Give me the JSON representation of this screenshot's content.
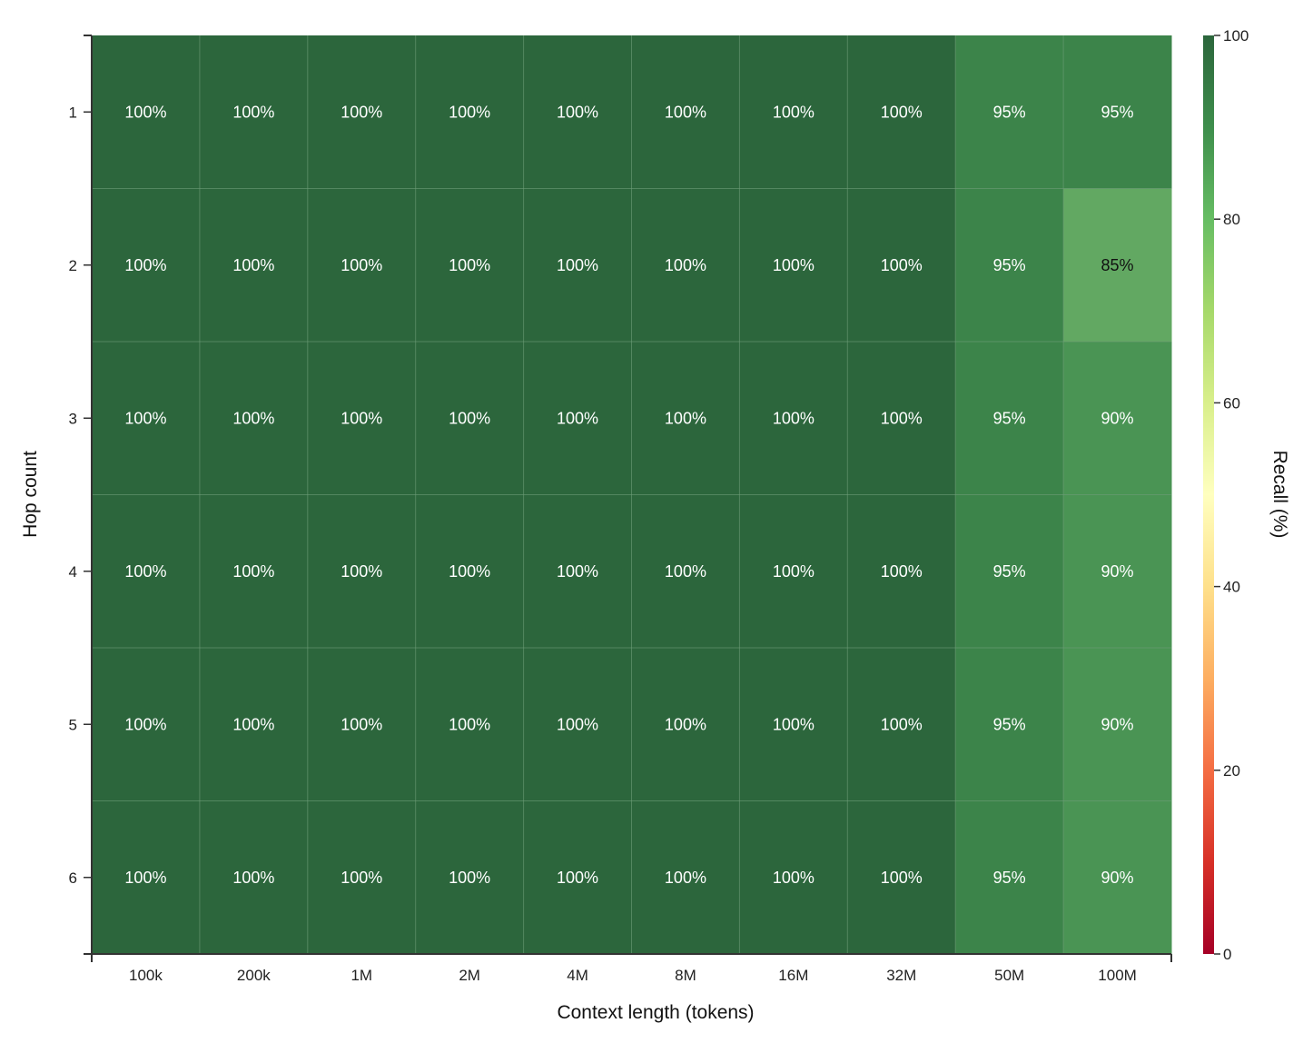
{
  "chart_data": {
    "type": "heatmap",
    "title": "",
    "xlabel": "Context length (tokens)",
    "ylabel": "Hop count",
    "x_categories": [
      "100k",
      "200k",
      "1M",
      "2M",
      "4M",
      "8M",
      "16M",
      "32M",
      "50M",
      "100M"
    ],
    "y_categories": [
      "1",
      "2",
      "3",
      "4",
      "5",
      "6"
    ],
    "values": [
      [
        100,
        100,
        100,
        100,
        100,
        100,
        100,
        100,
        95,
        95
      ],
      [
        100,
        100,
        100,
        100,
        100,
        100,
        100,
        100,
        95,
        85
      ],
      [
        100,
        100,
        100,
        100,
        100,
        100,
        100,
        100,
        95,
        90
      ],
      [
        100,
        100,
        100,
        100,
        100,
        100,
        100,
        100,
        95,
        90
      ],
      [
        100,
        100,
        100,
        100,
        100,
        100,
        100,
        100,
        95,
        90
      ],
      [
        100,
        100,
        100,
        100,
        100,
        100,
        100,
        100,
        95,
        90
      ]
    ],
    "value_format": "{v}%",
    "colorbar": {
      "label": "Recall (%)",
      "min": 0,
      "max": 100,
      "ticks": [
        "0",
        "20",
        "40",
        "60",
        "80",
        "100"
      ]
    },
    "colormap": "RdYlGn",
    "colors": {
      "v100": "#2c663c",
      "v95": "#3c844a",
      "v90": "#4a9454",
      "v85": "#62a862",
      "grid_line": "#6e9c78",
      "axis": "#333333"
    }
  }
}
